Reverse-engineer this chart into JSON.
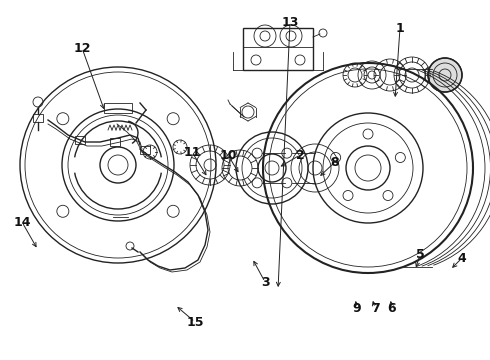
{
  "bg_color": "#ffffff",
  "line_color": "#222222",
  "figsize": [
    4.9,
    3.6
  ],
  "dpi": 100,
  "xlim": [
    0,
    490
  ],
  "ylim": [
    0,
    360
  ]
}
